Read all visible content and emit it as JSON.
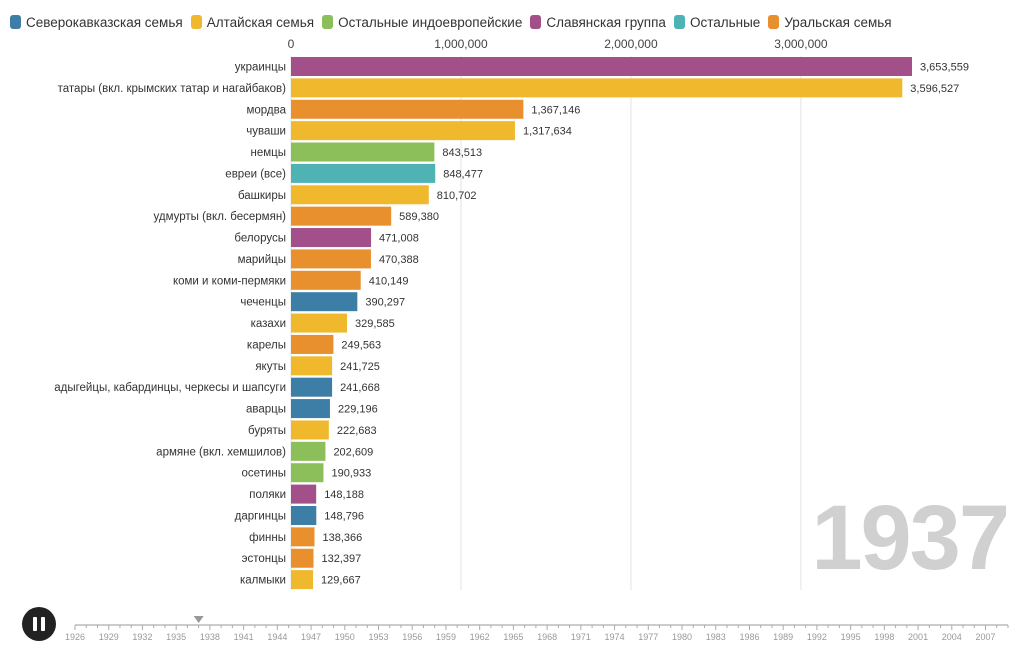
{
  "legend": [
    {
      "name": "Северокавказская семья",
      "color": "#3d7ea6"
    },
    {
      "name": "Алтайская семья",
      "color": "#f0b92d"
    },
    {
      "name": "Остальные индоевропейские",
      "color": "#8cbf5a"
    },
    {
      "name": "Славянская группа",
      "color": "#a3508a"
    },
    {
      "name": "Остальные",
      "color": "#4fb3b3"
    },
    {
      "name": "Уральская семья",
      "color": "#e8902e"
    }
  ],
  "year": "1937",
  "chart_data": {
    "type": "bar",
    "orientation": "horizontal",
    "xlim": [
      0,
      3653559
    ],
    "x_ticks": [
      0,
      1000000,
      2000000,
      3000000
    ],
    "x_tick_labels": [
      "0",
      "1,000,000",
      "2,000,000",
      "3,000,000"
    ],
    "grid": true,
    "categories": [
      "украинцы",
      "татары (вкл. крымских татар и нагайбаков)",
      "мордва",
      "чуваши",
      "немцы",
      "евреи (все)",
      "башкиры",
      "удмурты (вкл. бесермян)",
      "белорусы",
      "марийцы",
      "коми и коми-пермяки",
      "чеченцы",
      "казахи",
      "карелы",
      "якуты",
      "адыгейцы, кабардинцы, черкесы и шапсуги",
      "аварцы",
      "буряты",
      "армяне (вкл. хемшилов)",
      "осетины",
      "поляки",
      "даргинцы",
      "финны",
      "эстонцы",
      "калмыки"
    ],
    "values": [
      3653559,
      3596527,
      1367146,
      1317634,
      843513,
      848477,
      810702,
      589380,
      471008,
      470388,
      410149,
      390297,
      329585,
      249563,
      241725,
      241668,
      229196,
      222683,
      202609,
      190933,
      148188,
      148796,
      138366,
      132397,
      129667
    ],
    "value_labels": [
      "3,653,559",
      "3,596,527",
      "1,367,146",
      "1,317,634",
      "843,513",
      "848,477",
      "810,702",
      "589,380",
      "471,008",
      "470,388",
      "410,149",
      "390,297",
      "329,585",
      "249,563",
      "241,725",
      "241,668",
      "229,196",
      "222,683",
      "202,609",
      "190,933",
      "148,188",
      "148,796",
      "138,366",
      "132,397",
      "129,667"
    ],
    "groups": [
      "Славянская группа",
      "Алтайская семья",
      "Уральская семья",
      "Алтайская семья",
      "Остальные индоевропейские",
      "Остальные",
      "Алтайская семья",
      "Уральская семья",
      "Славянская группа",
      "Уральская семья",
      "Уральская семья",
      "Северокавказская семья",
      "Алтайская семья",
      "Уральская семья",
      "Алтайская семья",
      "Северокавказская семья",
      "Северокавказская семья",
      "Алтайская семья",
      "Остальные индоевропейские",
      "Остальные индоевропейские",
      "Славянская группа",
      "Северокавказская семья",
      "Уральская семья",
      "Уральская семья",
      "Алтайская семья"
    ]
  },
  "timeline": {
    "start_year": 1926,
    "end_year": 2009,
    "current_year": 1937,
    "labels": [
      "1926",
      "1929",
      "1932",
      "1935",
      "1938",
      "1941",
      "1944",
      "1947",
      "1950",
      "1953",
      "1956",
      "1959",
      "1962",
      "1965",
      "1968",
      "1971",
      "1974",
      "1977",
      "1980",
      "1983",
      "1986",
      "1989",
      "1992",
      "1995",
      "1998",
      "2001",
      "2004",
      "2007"
    ]
  }
}
